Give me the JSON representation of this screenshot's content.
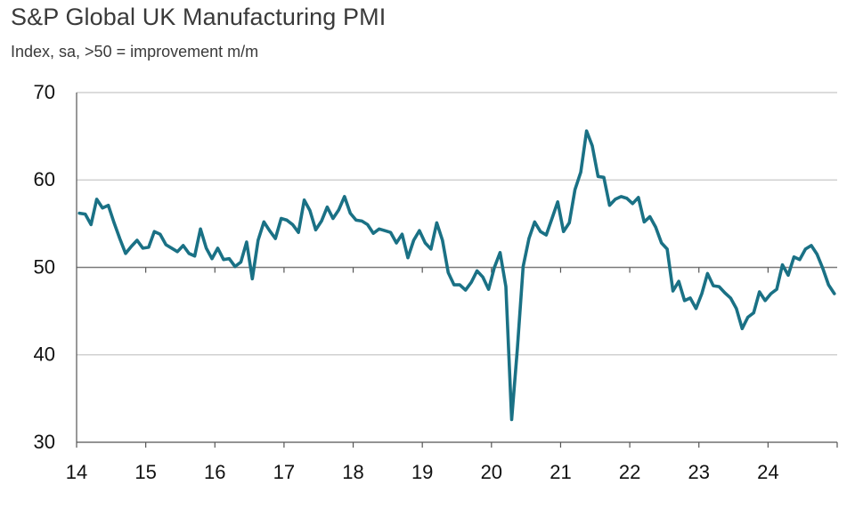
{
  "header": {
    "title": "S&P Global UK Manufacturing PMI",
    "subtitle": "Index, sa, >50 = improvement m/m"
  },
  "chart_data": {
    "type": "line",
    "title": "S&P Global UK Manufacturing PMI",
    "subtitle": "Index, sa, >50 = improvement m/m",
    "xlabel": "",
    "ylabel": "",
    "ylim": [
      30,
      70
    ],
    "yticks": [
      "70",
      "60",
      "50",
      "40",
      "30"
    ],
    "xticks": [
      "14",
      "15",
      "16",
      "17",
      "18",
      "19",
      "20",
      "21",
      "22",
      "23",
      "24"
    ],
    "grid": true,
    "reference_line": 50,
    "line_color": "#1a7185",
    "x_start": "2014-01",
    "x_frequency": "monthly",
    "series": [
      {
        "values": [
          56.2,
          56.1,
          54.9,
          57.8,
          56.8,
          57.1,
          55.1,
          53.3,
          51.6,
          52.4,
          53.1,
          52.2,
          52.3,
          54.1,
          53.8,
          52.6,
          52.2,
          51.8,
          52.5,
          51.6,
          51.3,
          54.4,
          52.2,
          51.0,
          52.2,
          50.9,
          51.0,
          50.1,
          50.6,
          52.9,
          48.7,
          53.1,
          55.2,
          54.2,
          53.3,
          55.6,
          55.4,
          54.9,
          54.0,
          57.7,
          56.5,
          54.3,
          55.3,
          56.9,
          55.6,
          56.6,
          58.1,
          56.2,
          55.4,
          55.3,
          54.9,
          53.9,
          54.4,
          54.2,
          54.0,
          52.8,
          53.8,
          51.1,
          53.1,
          54.2,
          52.8,
          52.1,
          55.1,
          53.1,
          49.4,
          48.0,
          48.0,
          47.4,
          48.3,
          49.6,
          48.9,
          47.5,
          50.0,
          51.7,
          47.8,
          32.6,
          40.7,
          50.1,
          53.3,
          55.2,
          54.1,
          53.7,
          55.6,
          57.5,
          54.1,
          55.1,
          58.9,
          60.9,
          65.6,
          63.9,
          60.4,
          60.3,
          57.1,
          57.8,
          58.1,
          57.9,
          57.3,
          58.0,
          55.2,
          55.8,
          54.6,
          52.8,
          52.1,
          47.3,
          48.4,
          46.2,
          46.5,
          45.3,
          47.0,
          49.3,
          47.9,
          47.8,
          47.1,
          46.5,
          45.3,
          43.0,
          44.3,
          44.8,
          47.2,
          46.2,
          47.0,
          47.5,
          50.3,
          49.1,
          51.2,
          50.9,
          52.1,
          52.5,
          51.5,
          49.9,
          48.0,
          47.0
        ]
      }
    ]
  }
}
